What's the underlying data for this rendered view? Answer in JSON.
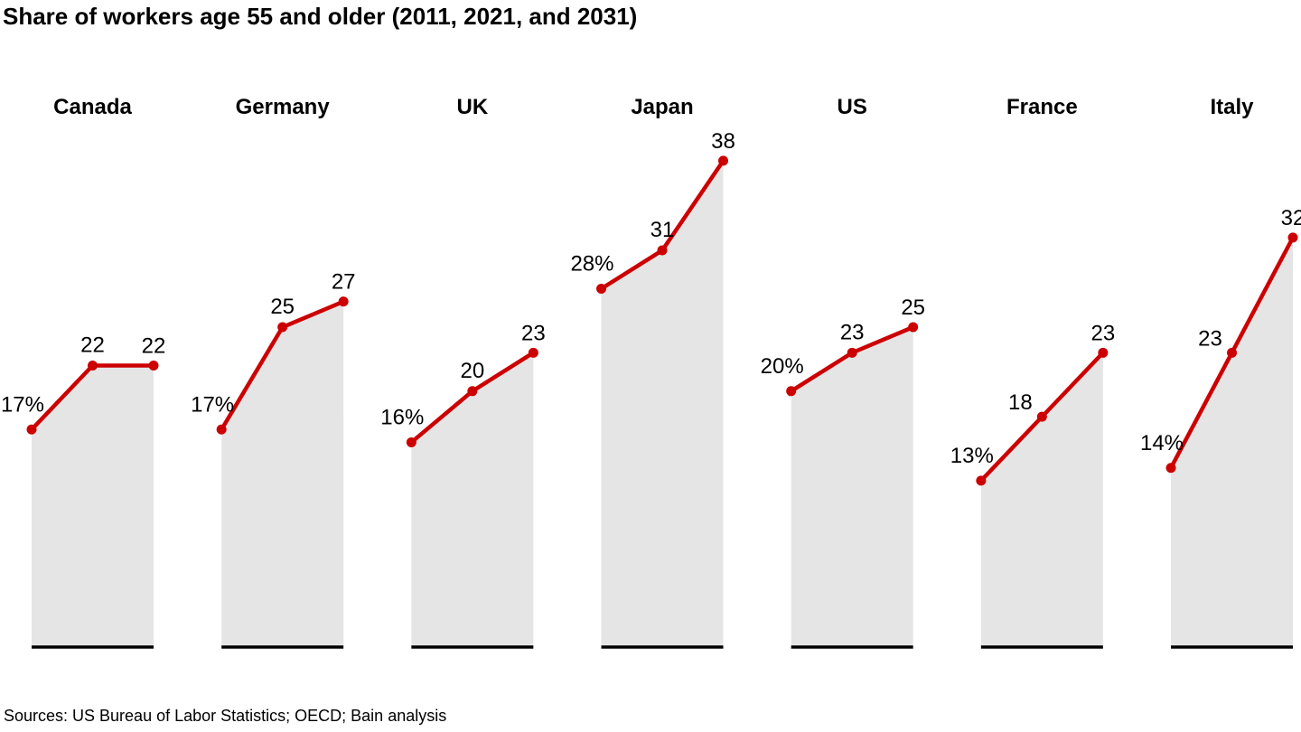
{
  "title": "Share of workers age 55 and older (2011, 2021, and 2031)",
  "source": "Sources: US Bureau of Labor Statistics; OECD; Bain analysis",
  "chart_data": {
    "type": "line",
    "layout": "small-multiples-area-line",
    "title": "Share of workers age 55 and older (2011, 2021, and 2031)",
    "unit": "%",
    "categories": [
      2011,
      2021,
      2031
    ],
    "series": [
      {
        "name": "Canada",
        "values": [
          17,
          22,
          22
        ],
        "labels": [
          "17%",
          "22",
          "22"
        ]
      },
      {
        "name": "Germany",
        "values": [
          17,
          25,
          27
        ],
        "labels": [
          "17%",
          "25",
          "27"
        ]
      },
      {
        "name": "UK",
        "values": [
          16,
          20,
          23
        ],
        "labels": [
          "16%",
          "20",
          "23"
        ]
      },
      {
        "name": "Japan",
        "values": [
          28,
          31,
          38
        ],
        "labels": [
          "28%",
          "31",
          "38"
        ]
      },
      {
        "name": "US",
        "values": [
          20,
          23,
          25
        ],
        "labels": [
          "20%",
          "23",
          "25"
        ]
      },
      {
        "name": "France",
        "values": [
          13,
          18,
          23
        ],
        "labels": [
          "13%",
          "18",
          "23"
        ]
      },
      {
        "name": "Italy",
        "values": [
          14,
          23,
          32
        ],
        "labels": [
          "14%",
          "23",
          "32"
        ]
      }
    ],
    "ylim": [
      0,
      38
    ],
    "grid": false,
    "legend": "none",
    "colors": {
      "line": "#cc0000",
      "marker": "#cc0000",
      "area": "#e5e5e5",
      "baseline": "#000000",
      "text": "#000000"
    }
  }
}
